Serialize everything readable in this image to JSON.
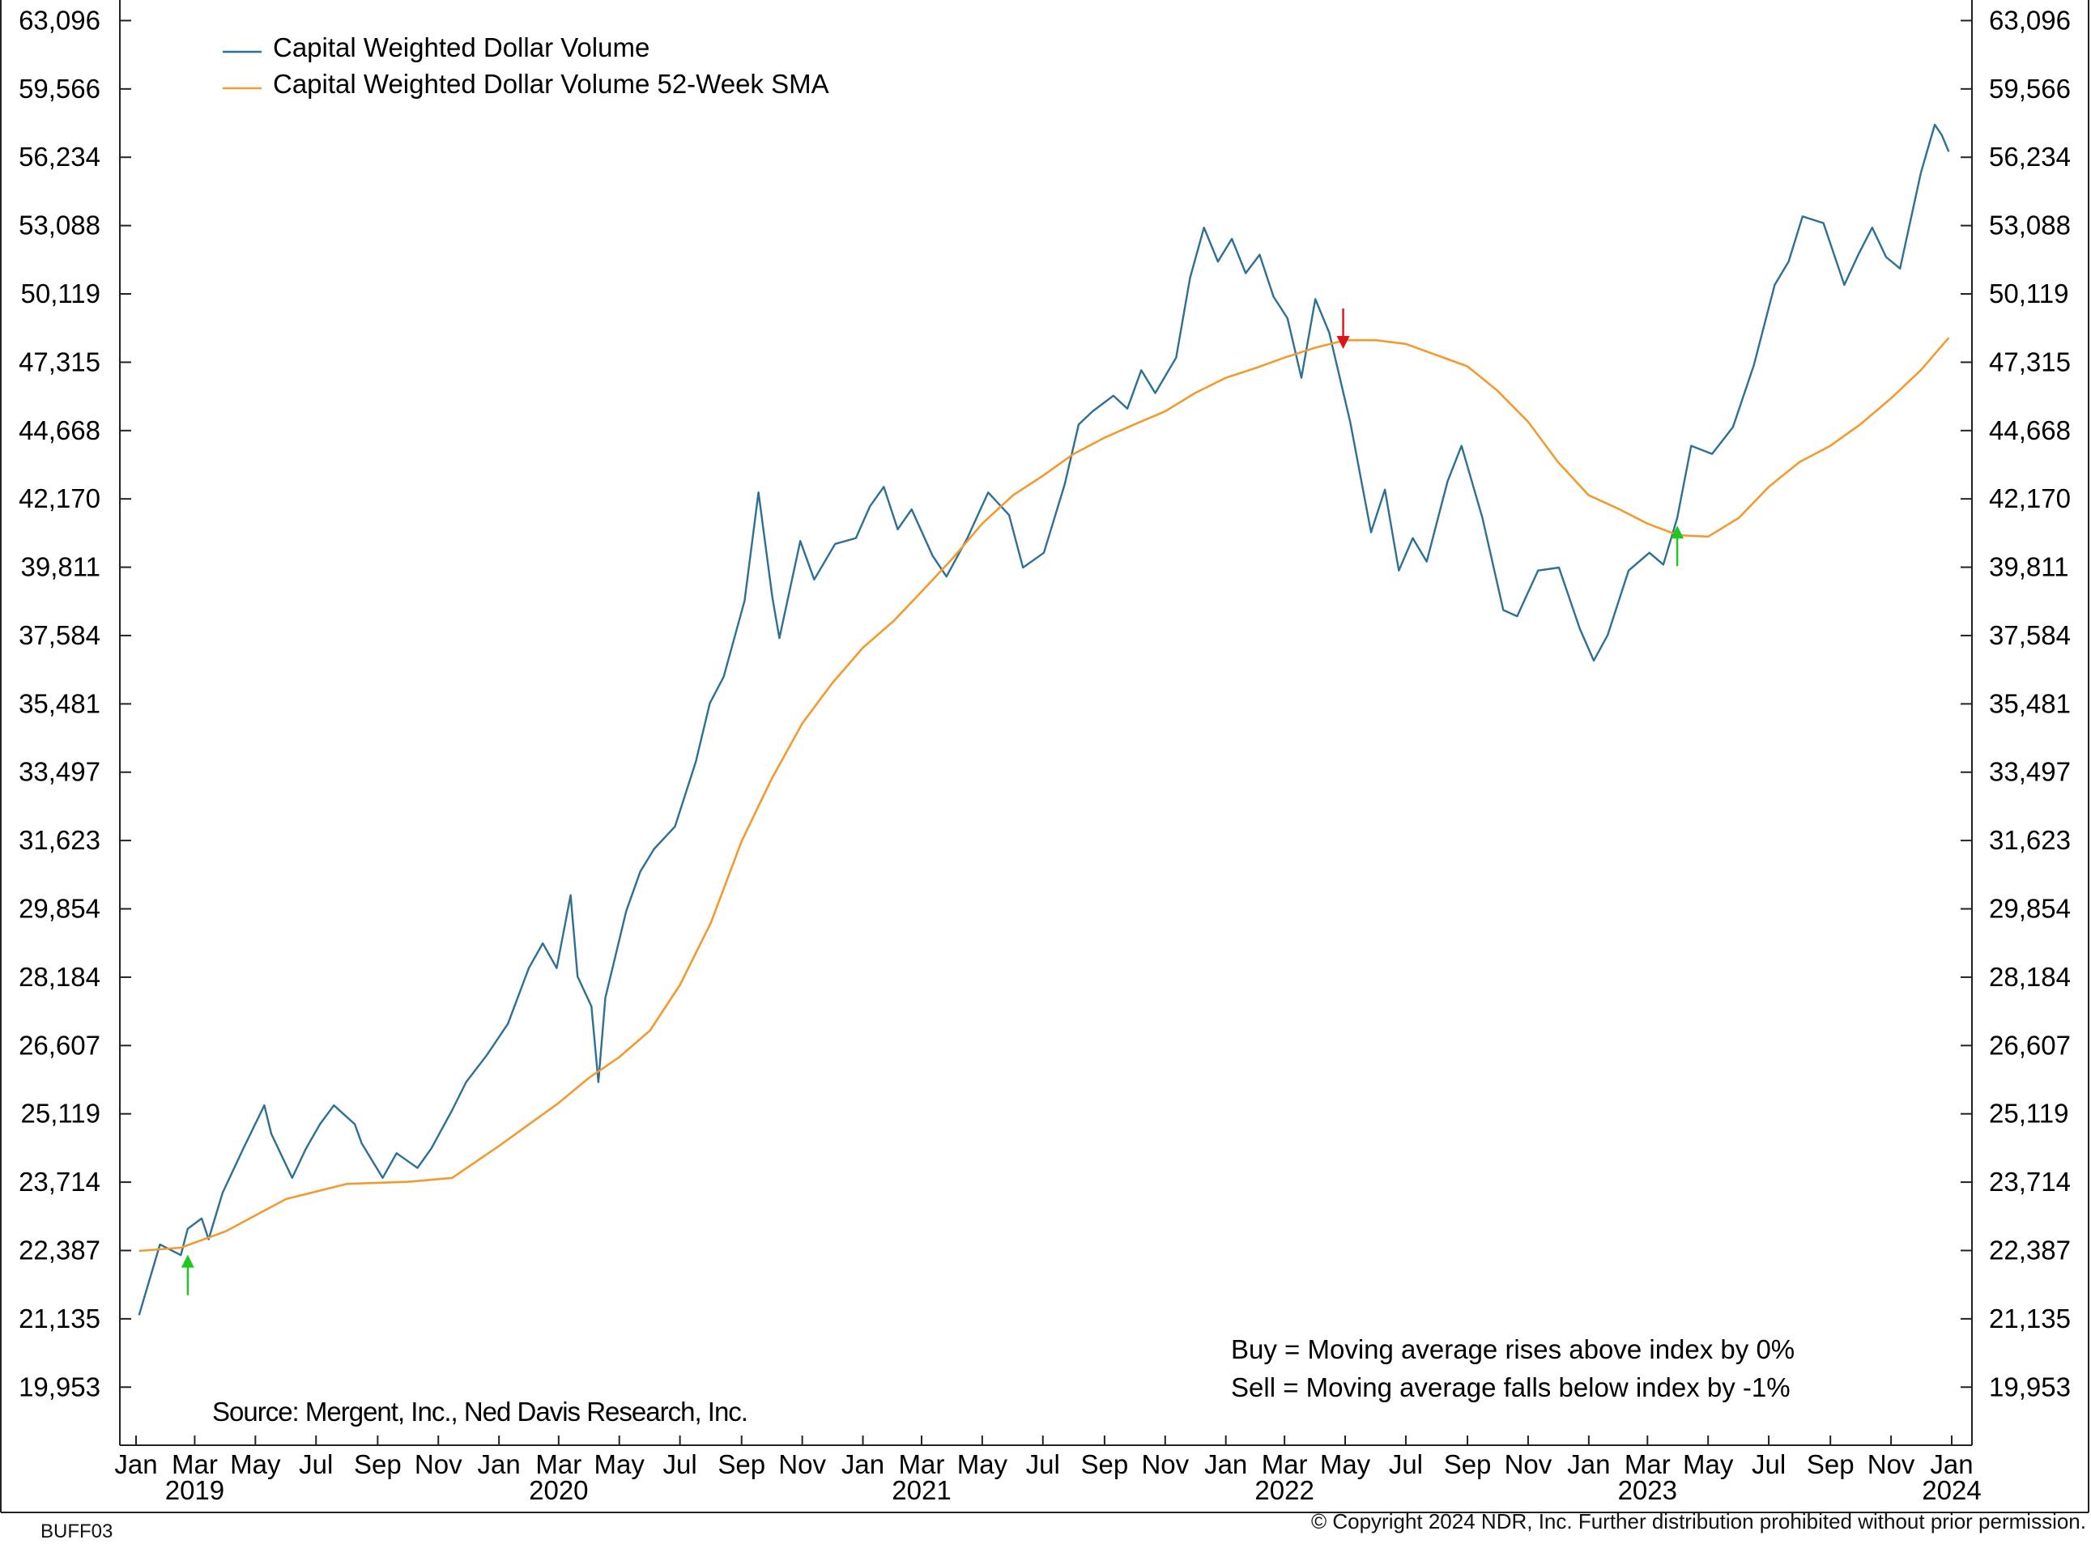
{
  "chart_data": {
    "type": "line",
    "scale": "log",
    "ylim": [
      19000,
      64200
    ],
    "y_ticks": [
      "63,096",
      "59,566",
      "56,234",
      "53,088",
      "50,119",
      "47,315",
      "44,668",
      "42,170",
      "39,811",
      "37,584",
      "35,481",
      "33,497",
      "31,623",
      "29,854",
      "28,184",
      "26,607",
      "25,119",
      "23,714",
      "22,387",
      "21,135",
      "19,953"
    ],
    "x_range": [
      "2019-01-04",
      "2023-12-29"
    ],
    "x_tick_labels": [
      {
        "date": "2019-01-01",
        "label": "Jan"
      },
      {
        "date": "2019-03-01",
        "label": "Mar"
      },
      {
        "date": "2019-05-01",
        "label": "May"
      },
      {
        "date": "2019-07-01",
        "label": "Jul"
      },
      {
        "date": "2019-09-01",
        "label": "Sep"
      },
      {
        "date": "2019-11-01",
        "label": "Nov"
      },
      {
        "date": "2020-01-01",
        "label": "Jan"
      },
      {
        "date": "2020-03-01",
        "label": "Mar"
      },
      {
        "date": "2020-05-01",
        "label": "May"
      },
      {
        "date": "2020-07-01",
        "label": "Jul"
      },
      {
        "date": "2020-09-01",
        "label": "Sep"
      },
      {
        "date": "2020-11-01",
        "label": "Nov"
      },
      {
        "date": "2021-01-01",
        "label": "Jan"
      },
      {
        "date": "2021-03-01",
        "label": "Mar"
      },
      {
        "date": "2021-05-01",
        "label": "May"
      },
      {
        "date": "2021-07-01",
        "label": "Jul"
      },
      {
        "date": "2021-09-01",
        "label": "Sep"
      },
      {
        "date": "2021-11-01",
        "label": "Nov"
      },
      {
        "date": "2022-01-01",
        "label": "Jan"
      },
      {
        "date": "2022-03-01",
        "label": "Mar"
      },
      {
        "date": "2022-05-01",
        "label": "May"
      },
      {
        "date": "2022-07-01",
        "label": "Jul"
      },
      {
        "date": "2022-09-01",
        "label": "Sep"
      },
      {
        "date": "2022-11-01",
        "label": "Nov"
      },
      {
        "date": "2023-01-01",
        "label": "Jan"
      },
      {
        "date": "2023-03-01",
        "label": "Mar"
      },
      {
        "date": "2023-05-01",
        "label": "May"
      },
      {
        "date": "2023-07-01",
        "label": "Jul"
      },
      {
        "date": "2023-09-01",
        "label": "Sep"
      },
      {
        "date": "2023-11-01",
        "label": "Nov"
      },
      {
        "date": "2024-01-01",
        "label": "Jan"
      }
    ],
    "year_labels": [
      {
        "date": "2019-03-01",
        "label": "2019"
      },
      {
        "date": "2020-03-01",
        "label": "2020"
      },
      {
        "date": "2021-03-01",
        "label": "2021"
      },
      {
        "date": "2022-03-01",
        "label": "2022"
      },
      {
        "date": "2023-03-01",
        "label": "2023"
      },
      {
        "date": "2024-01-01",
        "label": "2024"
      }
    ],
    "legend_position": "top-left",
    "grid": false,
    "series": [
      {
        "name": "Capital Weighted Dollar Volume",
        "color": "#2e6f94",
        "points": [
          [
            "2019-01-04",
            21200
          ],
          [
            "2019-01-25",
            22500
          ],
          [
            "2019-02-15",
            22300
          ],
          [
            "2019-02-22",
            22800
          ],
          [
            "2019-03-08",
            23000
          ],
          [
            "2019-03-15",
            22600
          ],
          [
            "2019-03-29",
            23500
          ],
          [
            "2019-04-19",
            24400
          ],
          [
            "2019-05-10",
            25300
          ],
          [
            "2019-05-17",
            24700
          ],
          [
            "2019-06-07",
            23800
          ],
          [
            "2019-06-21",
            24400
          ],
          [
            "2019-07-05",
            24900
          ],
          [
            "2019-07-19",
            25300
          ],
          [
            "2019-08-09",
            24900
          ],
          [
            "2019-08-16",
            24500
          ],
          [
            "2019-09-06",
            23800
          ],
          [
            "2019-09-20",
            24300
          ],
          [
            "2019-10-11",
            24000
          ],
          [
            "2019-10-25",
            24400
          ],
          [
            "2019-11-15",
            25200
          ],
          [
            "2019-11-29",
            25800
          ],
          [
            "2019-12-20",
            26400
          ],
          [
            "2020-01-10",
            27100
          ],
          [
            "2020-01-31",
            28400
          ],
          [
            "2020-02-14",
            29000
          ],
          [
            "2020-02-28",
            28400
          ],
          [
            "2020-03-13",
            30200
          ],
          [
            "2020-03-20",
            28200
          ],
          [
            "2020-04-03",
            27500
          ],
          [
            "2020-04-10",
            25800
          ],
          [
            "2020-04-17",
            27700
          ],
          [
            "2020-05-08",
            29800
          ],
          [
            "2020-05-22",
            30800
          ],
          [
            "2020-06-05",
            31400
          ],
          [
            "2020-06-26",
            32000
          ],
          [
            "2020-07-17",
            33800
          ],
          [
            "2020-07-31",
            35500
          ],
          [
            "2020-08-14",
            36300
          ],
          [
            "2020-09-04",
            38700
          ],
          [
            "2020-09-18",
            42400
          ],
          [
            "2020-10-02",
            38800
          ],
          [
            "2020-10-09",
            37500
          ],
          [
            "2020-10-30",
            40700
          ],
          [
            "2020-11-13",
            39400
          ],
          [
            "2020-12-04",
            40600
          ],
          [
            "2020-12-25",
            40800
          ],
          [
            "2021-01-08",
            41900
          ],
          [
            "2021-01-22",
            42600
          ],
          [
            "2021-02-05",
            41100
          ],
          [
            "2021-02-19",
            41800
          ],
          [
            "2021-03-12",
            40200
          ],
          [
            "2021-03-26",
            39500
          ],
          [
            "2021-04-16",
            40800
          ],
          [
            "2021-05-07",
            42400
          ],
          [
            "2021-05-28",
            41600
          ],
          [
            "2021-06-11",
            39800
          ],
          [
            "2021-07-02",
            40300
          ],
          [
            "2021-07-23",
            42700
          ],
          [
            "2021-08-06",
            44900
          ],
          [
            "2021-08-20",
            45400
          ],
          [
            "2021-09-10",
            46000
          ],
          [
            "2021-09-24",
            45500
          ],
          [
            "2021-10-08",
            47000
          ],
          [
            "2021-10-22",
            46100
          ],
          [
            "2021-11-12",
            47500
          ],
          [
            "2021-11-26",
            50800
          ],
          [
            "2021-12-10",
            53000
          ],
          [
            "2021-12-24",
            51500
          ],
          [
            "2022-01-07",
            52500
          ],
          [
            "2022-01-21",
            51000
          ],
          [
            "2022-02-04",
            51800
          ],
          [
            "2022-02-18",
            50000
          ],
          [
            "2022-03-04",
            49100
          ],
          [
            "2022-03-18",
            46700
          ],
          [
            "2022-04-01",
            49900
          ],
          [
            "2022-04-15",
            48500
          ],
          [
            "2022-05-06",
            45000
          ],
          [
            "2022-05-27",
            41000
          ],
          [
            "2022-06-10",
            42500
          ],
          [
            "2022-06-24",
            39700
          ],
          [
            "2022-07-08",
            40800
          ],
          [
            "2022-07-22",
            40000
          ],
          [
            "2022-08-12",
            42800
          ],
          [
            "2022-08-26",
            44100
          ],
          [
            "2022-09-16",
            41500
          ],
          [
            "2022-10-07",
            38400
          ],
          [
            "2022-10-21",
            38200
          ],
          [
            "2022-11-11",
            39700
          ],
          [
            "2022-12-02",
            39800
          ],
          [
            "2022-12-23",
            37800
          ],
          [
            "2023-01-06",
            36800
          ],
          [
            "2023-01-20",
            37600
          ],
          [
            "2023-02-10",
            39700
          ],
          [
            "2023-03-03",
            40300
          ],
          [
            "2023-03-17",
            39900
          ],
          [
            "2023-03-31",
            41500
          ],
          [
            "2023-04-14",
            44100
          ],
          [
            "2023-05-05",
            43800
          ],
          [
            "2023-05-26",
            44800
          ],
          [
            "2023-06-16",
            47200
          ],
          [
            "2023-07-07",
            50500
          ],
          [
            "2023-07-21",
            51500
          ],
          [
            "2023-08-04",
            53500
          ],
          [
            "2023-08-25",
            53200
          ],
          [
            "2023-09-15",
            50500
          ],
          [
            "2023-09-29",
            51800
          ],
          [
            "2023-10-13",
            53000
          ],
          [
            "2023-10-27",
            51700
          ],
          [
            "2023-11-10",
            51200
          ],
          [
            "2023-12-01",
            55500
          ],
          [
            "2023-12-15",
            57800
          ],
          [
            "2023-12-22",
            57300
          ],
          [
            "2023-12-29",
            56500
          ]
        ]
      },
      {
        "name": "Capital Weighted Dollar Volume 52-Week SMA",
        "color": "#f39a2e",
        "points": [
          [
            "2019-01-04",
            22380
          ],
          [
            "2019-02-15",
            22440
          ],
          [
            "2019-04-01",
            22750
          ],
          [
            "2019-06-01",
            23380
          ],
          [
            "2019-08-01",
            23680
          ],
          [
            "2019-10-01",
            23720
          ],
          [
            "2019-11-15",
            23800
          ],
          [
            "2020-01-01",
            24450
          ],
          [
            "2020-03-01",
            25350
          ],
          [
            "2020-04-01",
            25900
          ],
          [
            "2020-05-01",
            26350
          ],
          [
            "2020-06-01",
            26950
          ],
          [
            "2020-07-01",
            28000
          ],
          [
            "2020-08-01",
            29500
          ],
          [
            "2020-09-01",
            31600
          ],
          [
            "2020-10-01",
            33300
          ],
          [
            "2020-11-01",
            34900
          ],
          [
            "2020-12-01",
            36100
          ],
          [
            "2021-01-01",
            37200
          ],
          [
            "2021-02-01",
            38050
          ],
          [
            "2021-03-01",
            39000
          ],
          [
            "2021-04-01",
            40100
          ],
          [
            "2021-05-01",
            41300
          ],
          [
            "2021-06-01",
            42300
          ],
          [
            "2021-07-01",
            43000
          ],
          [
            "2021-08-01",
            43800
          ],
          [
            "2021-09-01",
            44400
          ],
          [
            "2021-10-01",
            44900
          ],
          [
            "2021-11-01",
            45400
          ],
          [
            "2021-12-01",
            46100
          ],
          [
            "2022-01-01",
            46700
          ],
          [
            "2022-02-01",
            47100
          ],
          [
            "2022-03-01",
            47500
          ],
          [
            "2022-04-01",
            47900
          ],
          [
            "2022-05-01",
            48200
          ],
          [
            "2022-06-01",
            48200
          ],
          [
            "2022-07-01",
            48050
          ],
          [
            "2022-08-01",
            47600
          ],
          [
            "2022-09-01",
            47150
          ],
          [
            "2022-10-01",
            46200
          ],
          [
            "2022-11-01",
            45000
          ],
          [
            "2022-12-01",
            43500
          ],
          [
            "2023-01-01",
            42300
          ],
          [
            "2023-02-01",
            41800
          ],
          [
            "2023-03-01",
            41300
          ],
          [
            "2023-04-01",
            40900
          ],
          [
            "2023-05-01",
            40850
          ],
          [
            "2023-06-01",
            41500
          ],
          [
            "2023-07-01",
            42600
          ],
          [
            "2023-08-01",
            43500
          ],
          [
            "2023-09-01",
            44100
          ],
          [
            "2023-10-01",
            44900
          ],
          [
            "2023-11-01",
            45900
          ],
          [
            "2023-12-01",
            47000
          ],
          [
            "2023-12-29",
            48300
          ]
        ]
      }
    ],
    "signals": [
      {
        "type": "buy",
        "date": "2019-02-22",
        "value": 22400,
        "color": "#1ec81e"
      },
      {
        "type": "sell",
        "date": "2022-04-29",
        "value": 47650,
        "color": "#e0101a"
      },
      {
        "type": "buy",
        "date": "2023-03-31",
        "value": 41400,
        "color": "#1ec81e"
      }
    ],
    "annotations": {
      "rules": [
        "Buy = Moving average rises above index by 0%",
        "Sell = Moving average falls below index by -1%"
      ],
      "source": "Source:   Mergent, Inc., Ned Davis Research, Inc."
    }
  },
  "footer": {
    "id": "BUFF03",
    "copyright": "© Copyright 2024 NDR, Inc. Further distribution prohibited without prior permission."
  }
}
